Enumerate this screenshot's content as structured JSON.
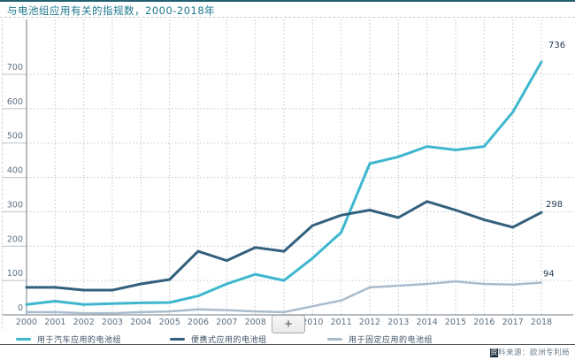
{
  "title": "与电池组应用有关的指规数，2000-2018年",
  "controls": {
    "zoom_in_label": "+"
  },
  "footer": {
    "source_highlight": "资",
    "source_rest": "料来源：欧洲专利局"
  },
  "colors": {
    "automotive": "#3eb7ce",
    "portable": "#33607d",
    "stationary": "#a9bccc",
    "title_text": "#20798d",
    "axis_text": "#5c6f80",
    "end_label_text": "#223a52",
    "gridline": "#c2c6ca",
    "axis_line": "#8d959c",
    "top_border": "#215e70"
  },
  "chart_data": {
    "type": "line",
    "title": "与电池组应用有关的指规数，2000-2018年",
    "x": [
      2000,
      2001,
      2002,
      2003,
      2004,
      2005,
      2006,
      2007,
      2008,
      2009,
      2010,
      2011,
      2012,
      2013,
      2014,
      2015,
      2016,
      2017,
      2018
    ],
    "series": [
      {
        "name": "用于汽车应用的电池组",
        "color": "#3eb7ce",
        "width": 3,
        "values": [
          30,
          40,
          30,
          33,
          35,
          36,
          55,
          90,
          118,
          100,
          165,
          240,
          440,
          460,
          490,
          480,
          490,
          590,
          736
        ],
        "end_label": "736"
      },
      {
        "name": "便携式应用的电池组",
        "color": "#33607d",
        "width": 3,
        "values": [
          80,
          80,
          72,
          72,
          90,
          103,
          185,
          158,
          196,
          185,
          260,
          290,
          305,
          283,
          330,
          305,
          277,
          255,
          298
        ],
        "end_label": "298"
      },
      {
        "name": "用于固定应用的电池组",
        "color": "#a9bccc",
        "width": 2.5,
        "values": [
          8,
          8,
          5,
          5,
          8,
          10,
          16,
          14,
          10,
          8,
          25,
          42,
          80,
          85,
          90,
          97,
          90,
          88,
          94
        ],
        "end_label": "94"
      }
    ],
    "ylim": [
      0,
      760
    ],
    "yticks": [
      0,
      100,
      200,
      300,
      400,
      500,
      600,
      700
    ],
    "grid": true,
    "legend_position": "bottom",
    "source": "资料来源：欧洲专利局"
  }
}
